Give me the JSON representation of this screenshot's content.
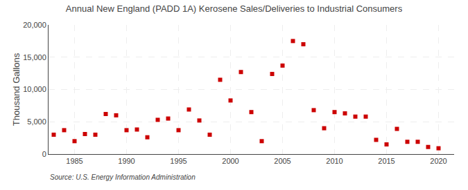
{
  "chart_data": {
    "type": "scatter",
    "title": "Annual New England (PADD 1A) Kerosene Sales/Deliveries to Industrial Consumers",
    "ylabel": "Thousand Gallons",
    "annotations": [
      "Source: U.S. Energy Information Administration"
    ],
    "x": [
      1983,
      1984,
      1985,
      1986,
      1987,
      1988,
      1989,
      1990,
      1991,
      1992,
      1993,
      1994,
      1995,
      1996,
      1997,
      1998,
      1999,
      2000,
      2001,
      2002,
      2003,
      2004,
      2005,
      2006,
      2007,
      2008,
      2009,
      2010,
      2011,
      2012,
      2013,
      2014,
      2015,
      2016,
      2017,
      2018,
      2019,
      2020
    ],
    "values": [
      3000,
      3700,
      2000,
      3100,
      3000,
      6200,
      6000,
      3700,
      3800,
      2600,
      5300,
      5500,
      3700,
      6900,
      5200,
      3000,
      11500,
      8300,
      12700,
      6500,
      2000,
      12400,
      13700,
      17500,
      17000,
      6800,
      4000,
      6500,
      6300,
      5800,
      5800,
      2200,
      1500,
      3900,
      1900,
      1900,
      1100,
      900
    ],
    "color": "#cc0000",
    "marker": "square",
    "xlim": [
      1982.5,
      2021.5
    ],
    "xticks": [
      1985,
      1990,
      1995,
      2000,
      2005,
      2010,
      2015,
      2020
    ],
    "ylim": [
      0,
      20000
    ],
    "yticks": [
      0,
      {
        "value": 5000,
        "label": "5,000"
      },
      {
        "value": 10000,
        "label": "10,000"
      },
      {
        "value": 15000,
        "label": "15,000"
      },
      {
        "value": 20000,
        "label": "20,000"
      }
    ],
    "grid": true
  }
}
